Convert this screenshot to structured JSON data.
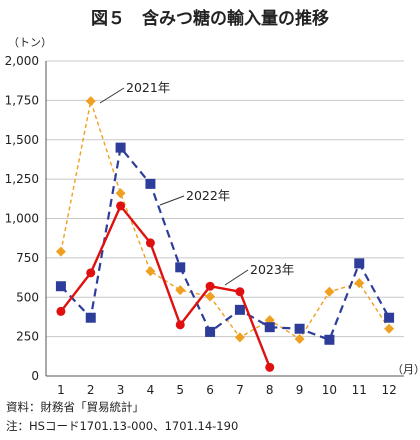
{
  "chart_data": {
    "type": "line",
    "title": "図５　含みつ糖の輸入量の推移",
    "ylabel": "（トン）",
    "xunit": "（月）",
    "x": [
      1,
      2,
      3,
      4,
      5,
      6,
      7,
      8,
      9,
      10,
      11,
      12
    ],
    "xticks": [
      "1",
      "2",
      "3",
      "4",
      "5",
      "6",
      "7",
      "8",
      "9",
      "10",
      "11",
      "12"
    ],
    "ylim": [
      0,
      2000
    ],
    "yticks": [
      "0",
      "250",
      "500",
      "750",
      "1,000",
      "1,250",
      "1,500",
      "1,750",
      "2,000"
    ],
    "grid": true,
    "series": [
      {
        "name": "2021年",
        "color": "#f0a020",
        "style": "dashed-diamond",
        "values": [
          790,
          1745,
          1160,
          665,
          545,
          505,
          245,
          355,
          235,
          535,
          590,
          300
        ]
      },
      {
        "name": "2022年",
        "color": "#2e3d9a",
        "style": "dashed-square",
        "values": [
          570,
          370,
          1450,
          1220,
          690,
          280,
          420,
          310,
          300,
          230,
          715,
          370
        ]
      },
      {
        "name": "2023年",
        "color": "#e01010",
        "style": "solid-circle",
        "values": [
          410,
          655,
          1080,
          845,
          325,
          570,
          535,
          55,
          null,
          null,
          null,
          null
        ]
      }
    ]
  },
  "notes": {
    "source": "資料：財務省「貿易統計」",
    "note": "注：HSコード1701.13-000、1701.14-190"
  }
}
